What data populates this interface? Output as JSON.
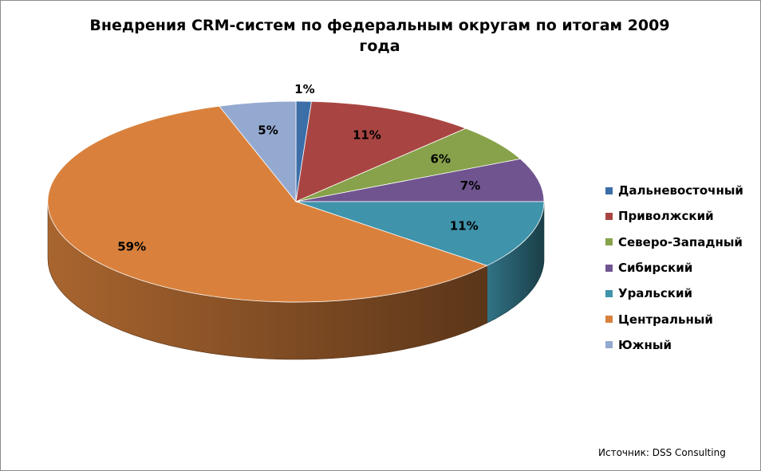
{
  "chart_data": {
    "type": "pie",
    "title": "Внедрения CRM-систем по федеральным округам по итогам 2009 года",
    "unit": "%",
    "categories": [
      "Дальневосточный",
      "Приволжский",
      "Северо-Западный",
      "Сибирский",
      "Уральский",
      "Центральный",
      "Южный"
    ],
    "values": [
      1,
      11,
      6,
      7,
      11,
      59,
      5
    ],
    "labels": [
      "1%",
      "11%",
      "6%",
      "7%",
      "11%",
      "59%",
      "5%"
    ],
    "colors": [
      "#3c6ea8",
      "#a84542",
      "#87a24a",
      "#70548f",
      "#3f93ab",
      "#d9813c",
      "#94a9d0"
    ],
    "style": "3d-pie",
    "legend_position": "right"
  },
  "source": "Источник: DSS Consulting"
}
